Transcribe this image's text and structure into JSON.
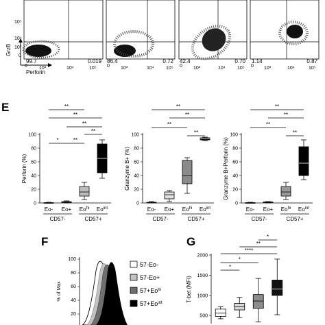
{
  "flow": {
    "y_ticks": [
      "0",
      "10³",
      "10⁴",
      "10⁵"
    ],
    "x_ticks": [
      "0",
      "10³",
      "10⁴",
      "10⁵"
    ],
    "y_label": "GrzB",
    "x_label": "Perforin",
    "plots": [
      {
        "q_ll": "99.7",
        "q_lr": "0.019"
      },
      {
        "q_ll": "86.4",
        "q_lr": "0.72"
      },
      {
        "q_ll": "42.4",
        "q_lr": "0.70"
      },
      {
        "q_ll": "1.14",
        "q_lr": "0.87"
      }
    ]
  },
  "panel_e": {
    "letter": "E",
    "groups_bottom": [
      "CD57-",
      "CD57+"
    ],
    "categories": [
      "Eo-",
      "Eo+",
      "Eohi",
      "Eoint"
    ],
    "charts": [
      {
        "ylabel": "Perforin (%)",
        "yticks": [
          "0",
          "20",
          "40",
          "60",
          "80",
          "100"
        ],
        "ylim": [
          0,
          100
        ],
        "boxes": [
          {
            "min": 0,
            "q1": 0,
            "median": 0,
            "q3": 0.5,
            "max": 1
          },
          {
            "min": 0,
            "q1": 0.5,
            "median": 1,
            "q3": 2,
            "max": 3
          },
          {
            "min": 5,
            "q1": 10,
            "median": 16,
            "q3": 24,
            "max": 30
          },
          {
            "min": 36,
            "q1": 44,
            "median": 65,
            "q3": 86,
            "max": 92
          }
        ],
        "sig": [
          "**",
          "**",
          "**",
          "*",
          "**",
          "**"
        ]
      },
      {
        "ylabel": "Granzyme B+ (%)",
        "yticks": [
          "0",
          "20",
          "40",
          "60",
          "80",
          "100"
        ],
        "ylim": [
          0,
          100
        ],
        "boxes": [
          {
            "min": 0,
            "q1": 0,
            "median": 0.5,
            "q3": 1,
            "max": 2
          },
          {
            "min": 2,
            "q1": 6,
            "median": 12,
            "q3": 16,
            "max": 18
          },
          {
            "min": 14,
            "q1": 28,
            "median": 40,
            "q3": 62,
            "max": 66
          },
          {
            "min": 91,
            "q1": 92,
            "median": 94,
            "q3": 95,
            "max": 96
          }
        ],
        "sig": [
          "**",
          "**",
          "**",
          "**"
        ]
      },
      {
        "ylabel": "Granzyme B+Perforin (%)",
        "yticks": [
          "0",
          "20",
          "40",
          "60",
          "80",
          "100"
        ],
        "ylim": [
          0,
          100
        ],
        "boxes": [
          {
            "min": 0,
            "q1": 0,
            "median": 0,
            "q3": 0.5,
            "max": 1
          },
          {
            "min": 0,
            "q1": 0.5,
            "median": 1,
            "q3": 1.5,
            "max": 2
          },
          {
            "min": 5,
            "q1": 10,
            "median": 16,
            "q3": 24,
            "max": 30
          },
          {
            "min": 34,
            "q1": 40,
            "median": 58,
            "q3": 82,
            "max": 92
          }
        ],
        "sig": [
          "**",
          "**",
          "**",
          "**"
        ]
      }
    ]
  },
  "panel_f": {
    "letter": "F",
    "ylabel": "% of Max",
    "yticks": [
      "100",
      "80",
      "60",
      "40",
      "20"
    ],
    "legend": [
      "57-Eo-",
      "57-Eo+",
      "57+Eohi",
      "57+Eoint"
    ],
    "legend_colors": [
      "#ffffff",
      "#c2c2c2",
      "#6f6f6f",
      "#000000"
    ]
  },
  "panel_g": {
    "letter": "G",
    "ylabel": "T-bet (MFI)",
    "yticks": [
      "2000",
      "1500",
      "1000",
      "500"
    ],
    "ylim": [
      300,
      2000
    ],
    "boxes": [
      {
        "min": 420,
        "q1": 480,
        "median": 560,
        "q3": 660,
        "max": 720
      },
      {
        "min": 450,
        "q1": 640,
        "median": 720,
        "q3": 800,
        "max": 950
      },
      {
        "min": 340,
        "q1": 680,
        "median": 860,
        "q3": 1020,
        "max": 1420
      },
      {
        "min": 520,
        "q1": 1000,
        "median": 1160,
        "q3": 1380,
        "max": 1900
      }
    ],
    "fills": [
      "#ffffff",
      "#d8d8d8",
      "#8c8c8c",
      "#111111"
    ],
    "sig": [
      "*",
      "*",
      "****",
      "**",
      "*"
    ]
  }
}
